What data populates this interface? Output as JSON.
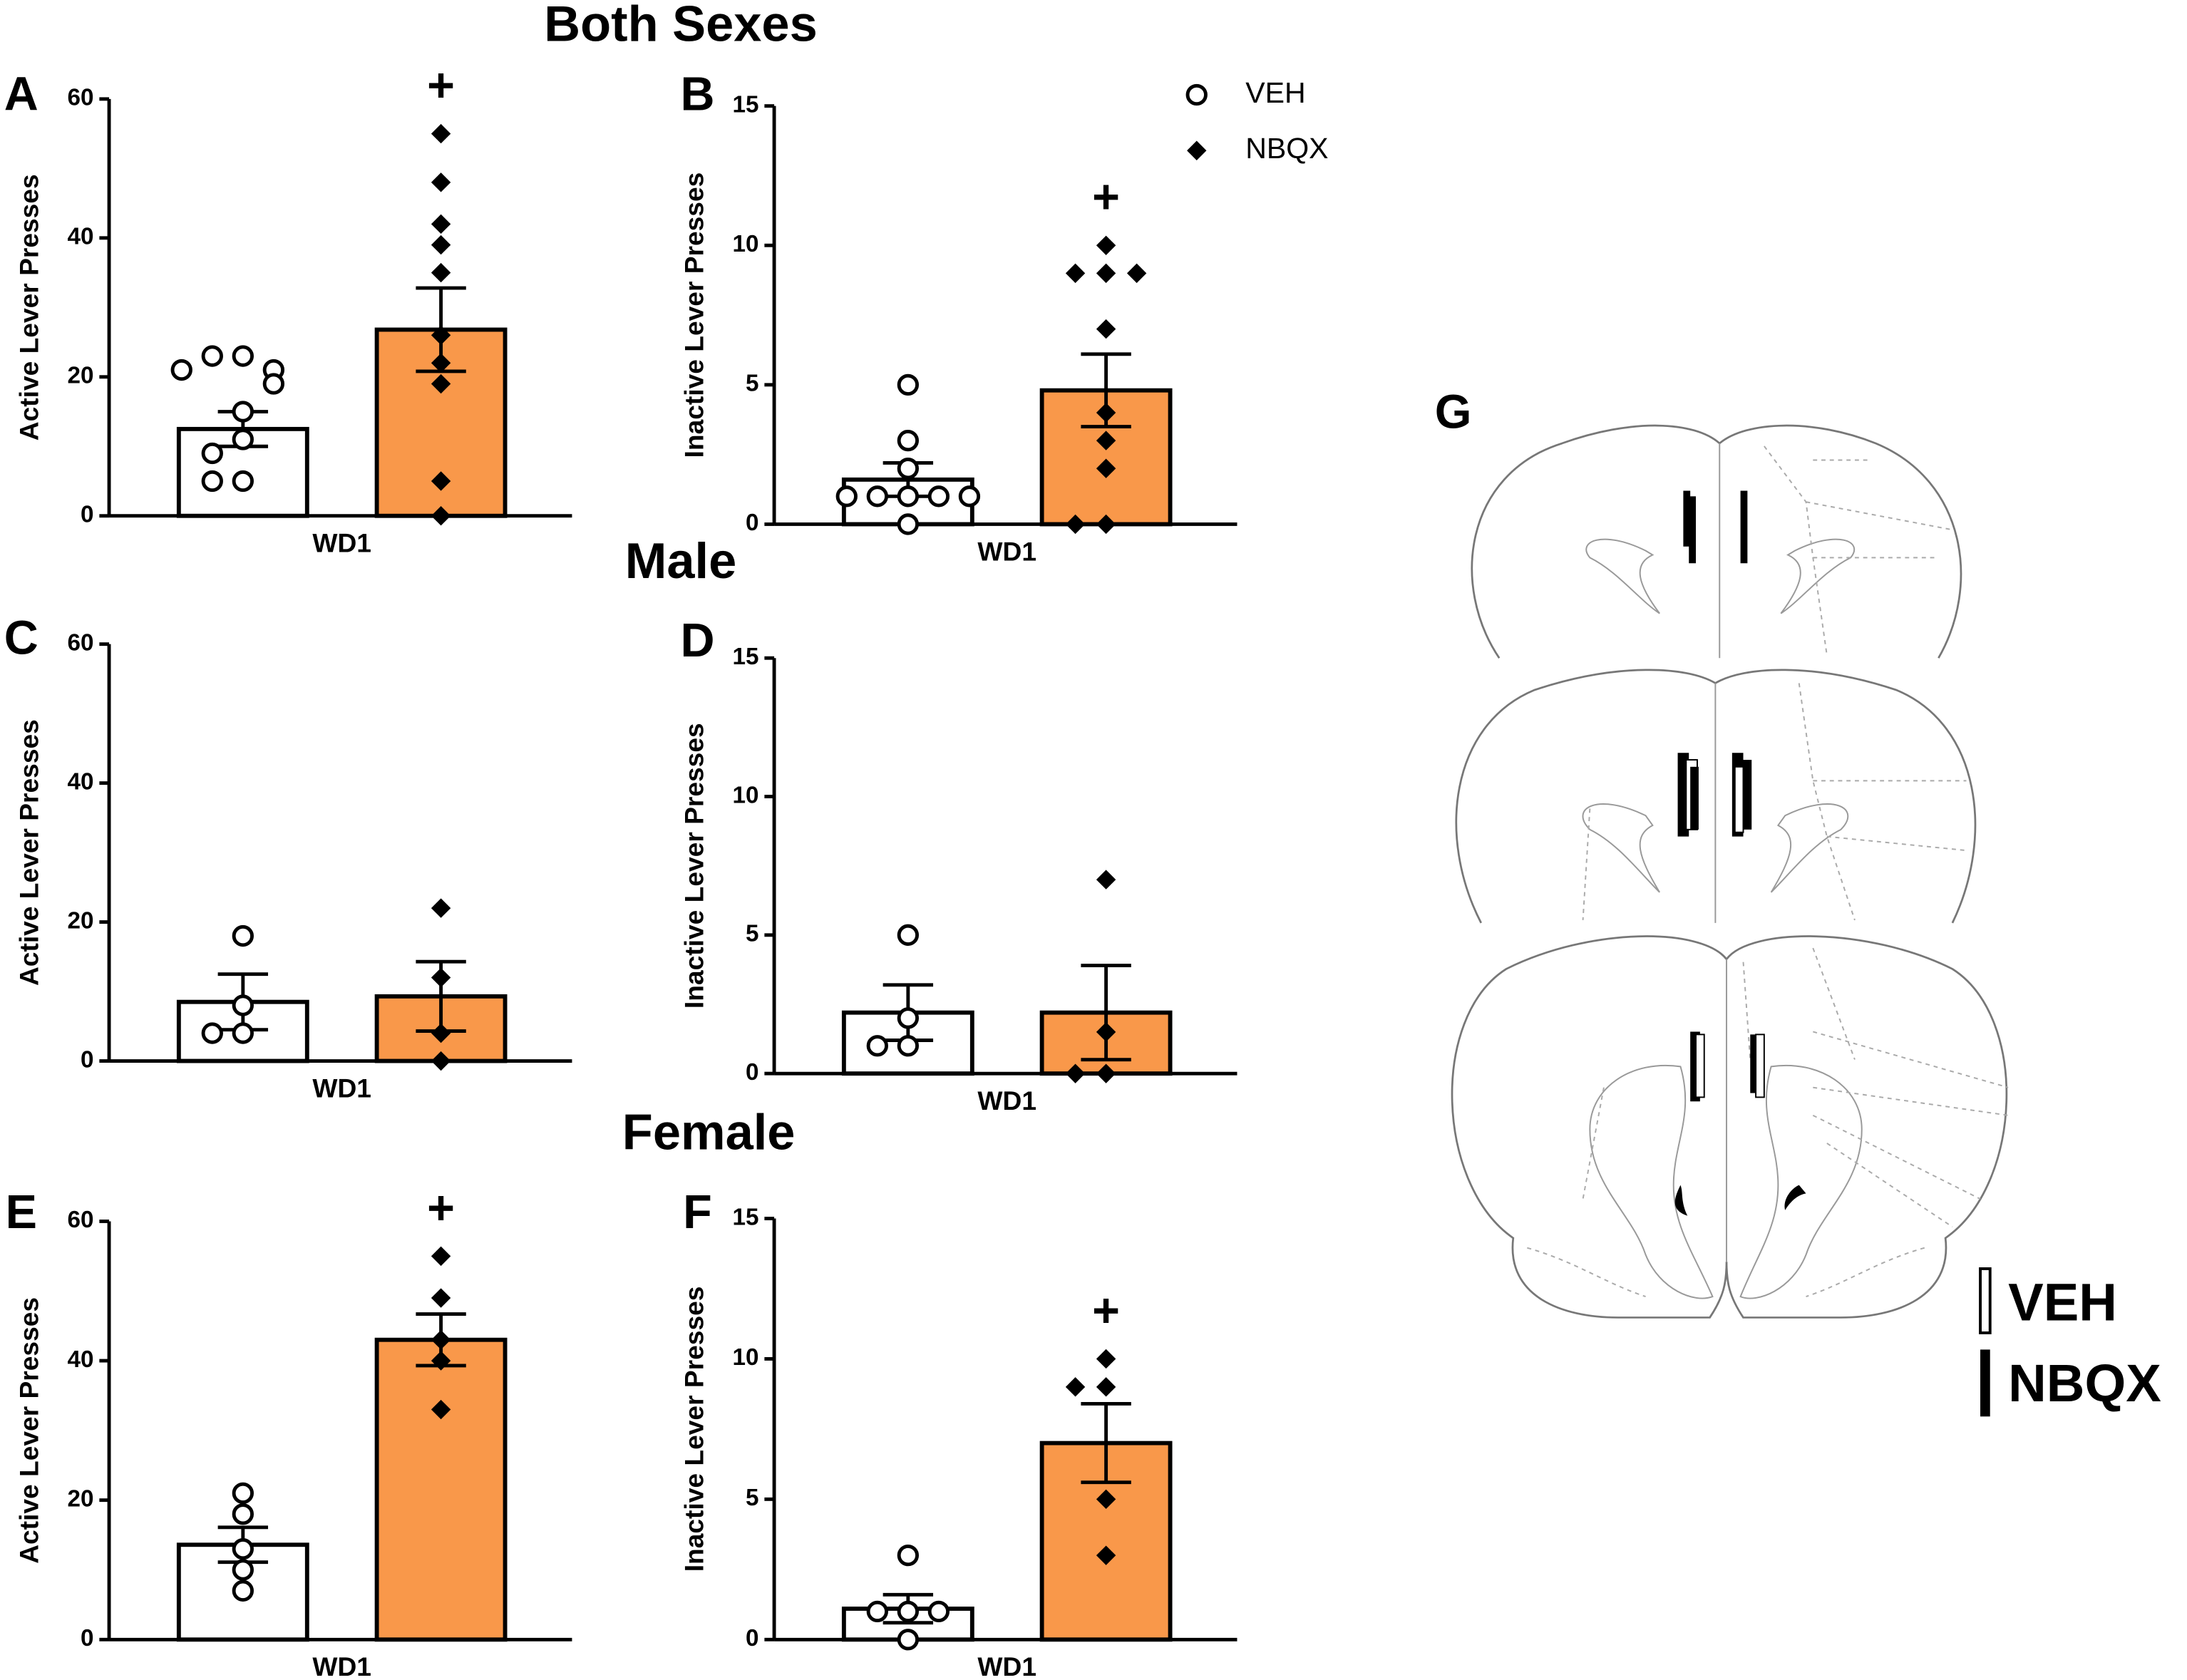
{
  "sections": [
    "Both Sexes",
    "Male",
    "Female"
  ],
  "legend": [
    {
      "name": "VEH",
      "marker": "circle"
    },
    {
      "name": "NBQX",
      "marker": "diamond"
    }
  ],
  "diagram": {
    "label": "G",
    "legend": [
      "VEH",
      "NBQX"
    ]
  },
  "chart_data": [
    {
      "type": "bar",
      "label": "A",
      "ylabel": "Active Lever Presses",
      "categories": [
        "WD1"
      ],
      "ylim": [
        0,
        60
      ],
      "yticks": [
        0,
        20,
        40,
        60
      ],
      "series": [
        {
          "color": "#ffffff",
          "values": [
            12.5
          ],
          "errors": [
            2.5
          ],
          "points": [
            [
              23,
              23,
              21,
              21,
              19,
              15,
              11,
              9,
              5,
              5
            ]
          ]
        },
        {
          "color": "#f9984a",
          "values": [
            26.8
          ],
          "errors": [
            6
          ],
          "points": [
            [
              55,
              48,
              42,
              39,
              35,
              26,
              22,
              19,
              5,
              0
            ]
          ],
          "annotation": "+"
        }
      ]
    },
    {
      "type": "bar",
      "label": "B",
      "ylabel": "Inactive Lever Presses",
      "categories": [
        "WD1"
      ],
      "ylim": [
        0,
        15
      ],
      "yticks": [
        0,
        5,
        10,
        15
      ],
      "show_legend": true,
      "series": [
        {
          "color": "#ffffff",
          "values": [
            1.6
          ],
          "errors": [
            0.6
          ],
          "points": [
            [
              5,
              3,
              2,
              1,
              1,
              1,
              1,
              1,
              0
            ]
          ]
        },
        {
          "color": "#f9984a",
          "values": [
            4.8
          ],
          "errors": [
            1.3
          ],
          "points": [
            [
              10,
              9,
              9,
              9,
              7,
              4,
              3,
              2,
              0,
              0
            ]
          ],
          "annotation": "+"
        }
      ]
    },
    {
      "type": "bar",
      "label": "C",
      "ylabel": "Active Lever Presses",
      "categories": [
        "WD1"
      ],
      "ylim": [
        0,
        60
      ],
      "yticks": [
        0,
        20,
        40,
        60
      ],
      "series": [
        {
          "color": "#ffffff",
          "values": [
            8.5
          ],
          "errors": [
            4
          ],
          "points": [
            [
              18,
              8,
              4,
              4
            ]
          ]
        },
        {
          "color": "#f9984a",
          "values": [
            9.3
          ],
          "errors": [
            5
          ],
          "points": [
            [
              22,
              12,
              4,
              0
            ]
          ]
        }
      ]
    },
    {
      "type": "bar",
      "label": "D",
      "ylabel": "Inactive Lever Presses",
      "categories": [
        "WD1"
      ],
      "ylim": [
        0,
        15
      ],
      "yticks": [
        0,
        5,
        10,
        15
      ],
      "series": [
        {
          "color": "#ffffff",
          "values": [
            2.2
          ],
          "errors": [
            1
          ],
          "points": [
            [
              5,
              2,
              1,
              1
            ]
          ]
        },
        {
          "color": "#f9984a",
          "values": [
            2.2
          ],
          "errors": [
            1.7
          ],
          "points": [
            [
              7,
              1.5,
              0,
              0
            ]
          ]
        }
      ]
    },
    {
      "type": "bar",
      "label": "E",
      "ylabel": "Active Lever Presses",
      "categories": [
        "WD1"
      ],
      "ylim": [
        0,
        60
      ],
      "yticks": [
        0,
        20,
        40,
        60
      ],
      "series": [
        {
          "color": "#ffffff",
          "values": [
            13.6
          ],
          "errors": [
            2.5
          ],
          "points": [
            [
              21,
              18,
              13,
              10,
              7
            ]
          ]
        },
        {
          "color": "#f9984a",
          "values": [
            43
          ],
          "errors": [
            3.7
          ],
          "points": [
            [
              55,
              49,
              43,
              40,
              33
            ]
          ],
          "annotation": "+"
        }
      ]
    },
    {
      "type": "bar",
      "label": "F",
      "ylabel": "Inactive Lever Presses",
      "categories": [
        "WD1"
      ],
      "ylim": [
        0,
        15
      ],
      "yticks": [
        0,
        5,
        10,
        15
      ],
      "series": [
        {
          "color": "#ffffff",
          "values": [
            1.1
          ],
          "errors": [
            0.5
          ],
          "points": [
            [
              3,
              1,
              1,
              1,
              0
            ]
          ]
        },
        {
          "color": "#f9984a",
          "values": [
            7
          ],
          "errors": [
            1.4
          ],
          "points": [
            [
              10,
              9,
              9,
              5,
              3
            ]
          ],
          "annotation": "+"
        }
      ]
    }
  ]
}
